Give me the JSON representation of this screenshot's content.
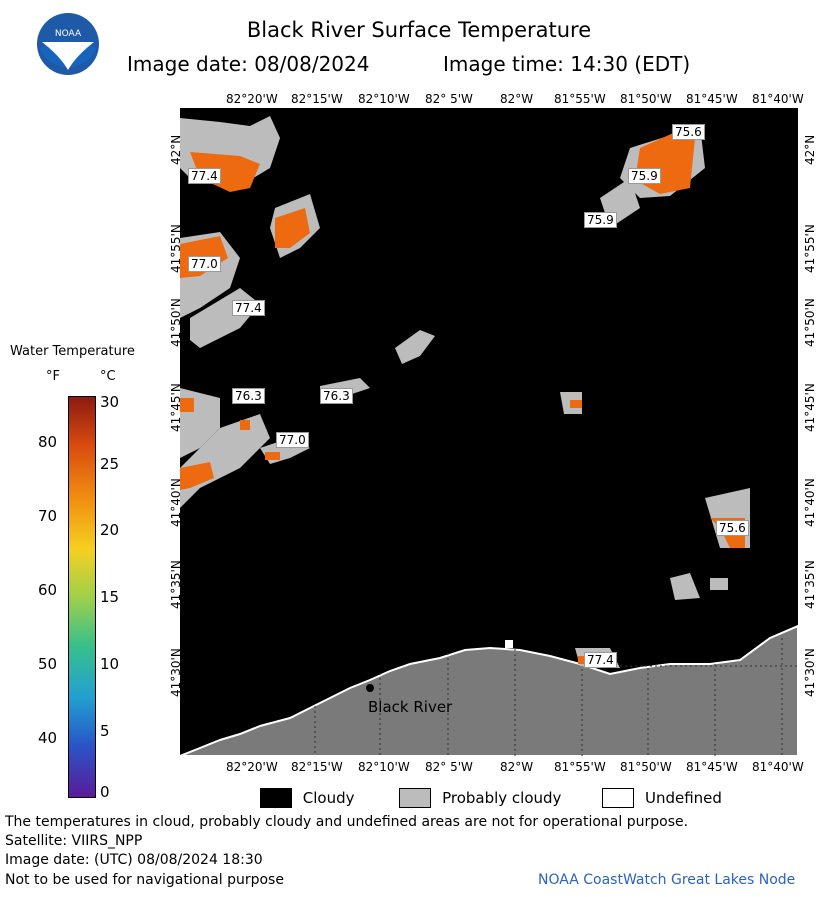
{
  "header": {
    "title": "Black River Surface Temperature",
    "image_date": "Image date: 08/08/2024",
    "image_time": "Image time: 14:30 (EDT)"
  },
  "axes": {
    "lon_labels": [
      "82°20'W",
      "82°15'W",
      "82°10'W",
      "82° 5'W",
      "82°W",
      "81°55'W",
      "81°50'W",
      "81°45'W",
      "81°40'W"
    ],
    "lat_labels": [
      "42°N",
      "41°55'N",
      "41°50'N",
      "41°45'N",
      "41°40'N",
      "41°35'N",
      "41°30'N"
    ]
  },
  "map": {
    "place_label": "Black River",
    "temperature_labels": [
      "75.6",
      "75.9",
      "75.9",
      "77.4",
      "77.0",
      "77.4",
      "76.3",
      "76.3",
      "77.0",
      "75.6",
      "77.4"
    ]
  },
  "colorbar": {
    "title": "Water Temperature",
    "unit_f": "°F",
    "unit_c": "°C",
    "f_ticks": [
      "80",
      "70",
      "60",
      "50",
      "40"
    ],
    "c_ticks": [
      "30",
      "25",
      "20",
      "15",
      "10",
      "5",
      "0"
    ]
  },
  "legend": {
    "cloudy": "Cloudy",
    "probably_cloudy": "Probably cloudy",
    "undefined": "Undefined"
  },
  "footer": {
    "disclaimer": "The temperatures in cloud, probably cloudy and undefined areas are not for operational purpose.",
    "satellite": "Satellite: VIIRS_NPP",
    "utc_date": "Image date: (UTC) 08/08/2024  18:30",
    "nav": "Not to be used for navigational purpose",
    "credit": "NOAA CoastWatch Great Lakes Node"
  },
  "colors": {
    "cloudy": "#000000",
    "probably_cloudy": "#bcbcbc",
    "land": "#7a7a7a",
    "water_warm": "#ee6a10"
  }
}
